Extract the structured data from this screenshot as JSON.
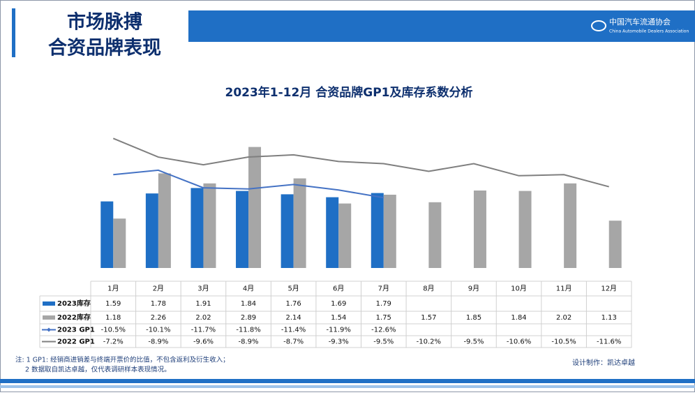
{
  "header": {
    "title": [
      "市场脉搏",
      "合资品牌表现"
    ],
    "logo": "中国汽车流通协会",
    "logo_en": "China Automobile Dealers Association"
  },
  "chart_data": {
    "type": "combo",
    "title": "2023年1-12月 合资品牌GP1及库存系数分析",
    "categories": [
      "1月",
      "2月",
      "3月",
      "4月",
      "5月",
      "6月",
      "7月",
      "8月",
      "9月",
      "10月",
      "11月",
      "12月"
    ],
    "ylim": [
      0,
      3.2
    ],
    "y2lim": [
      -19,
      -6.8
    ],
    "series": [
      {
        "name": "2023库存",
        "type": "bar",
        "color": "#1f6fc5",
        "values": [
          1.59,
          1.78,
          1.91,
          1.84,
          1.76,
          1.69,
          1.79,
          null,
          null,
          null,
          null,
          null
        ]
      },
      {
        "name": "2022库存",
        "type": "bar",
        "color": "#a6a6a6",
        "values": [
          1.18,
          2.26,
          2.02,
          2.89,
          2.14,
          1.54,
          1.75,
          1.57,
          1.85,
          1.84,
          2.02,
          1.13
        ]
      },
      {
        "name": "2023 GP1",
        "type": "line",
        "axis": "y2",
        "color": "#4472c4",
        "values": [
          -10.5,
          -10.1,
          -11.7,
          -11.8,
          -11.4,
          -11.9,
          -12.6,
          null,
          null,
          null,
          null,
          null
        ],
        "value_labels": [
          "-10.5%",
          "-10.1%",
          "-11.7%",
          "-11.8%",
          "-11.4%",
          "-11.9%",
          "-12.6%",
          null,
          null,
          null,
          null,
          null
        ]
      },
      {
        "name": "2022 GP1",
        "type": "line",
        "axis": "y2",
        "color": "#7f7f7f",
        "values": [
          -7.2,
          -8.9,
          -9.6,
          -8.9,
          -8.7,
          -9.3,
          -9.5,
          -10.2,
          -9.5,
          -10.6,
          -10.5,
          -11.6
        ],
        "value_labels": [
          "-7.2%",
          "-8.9%",
          "-9.6%",
          "-8.9%",
          "-8.7%",
          "-9.3%",
          "-9.5%",
          "-10.2%",
          "-9.5%",
          "-10.6%",
          "-10.5%",
          "-11.6%"
        ]
      }
    ]
  },
  "notes": [
    "注: 1  GP1: 经销商进销差与终端开票价的比值，不包含返利及衍生收入；",
    "2 数据取自凯达卓越，仅代表调研样本表现情况。"
  ],
  "credit": "设计制作：凯达卓越"
}
